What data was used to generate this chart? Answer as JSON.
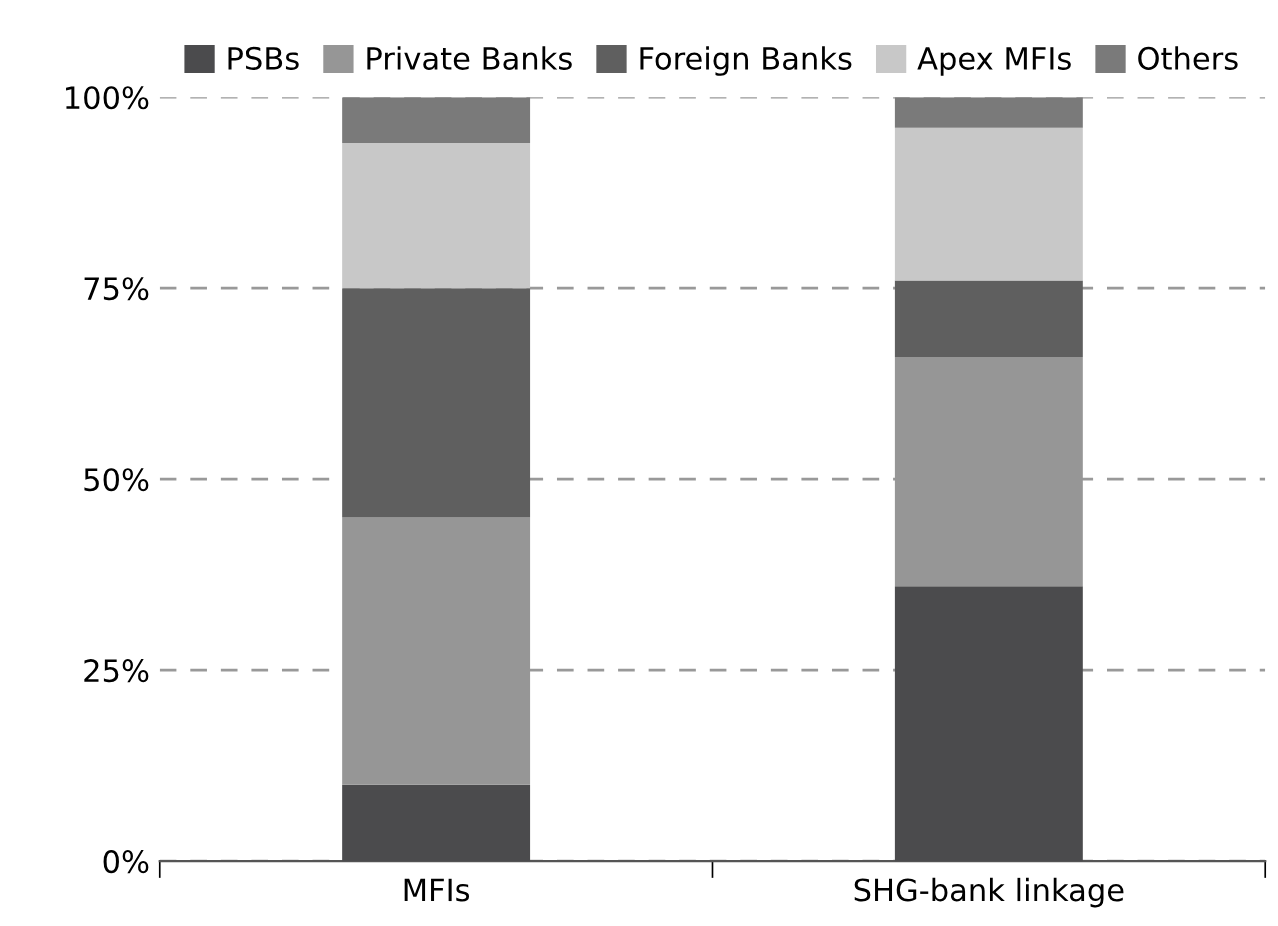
{
  "chart_data": {
    "type": "bar",
    "stacked": true,
    "categories": [
      "MFIs",
      "SHG-bank linkage"
    ],
    "series": [
      {
        "name": "PSBs",
        "color": "#4b4b4d",
        "values": [
          10,
          36
        ]
      },
      {
        "name": "Private Banks",
        "color": "#969696",
        "values": [
          35,
          30
        ]
      },
      {
        "name": "Foreign Banks",
        "color": "#5f5f5f",
        "values": [
          30,
          10
        ]
      },
      {
        "name": "Apex MFIs",
        "color": "#c8c8c8",
        "values": [
          19,
          20
        ]
      },
      {
        "name": "Others",
        "color": "#7a7a7a",
        "values": [
          6,
          4
        ]
      }
    ],
    "ylim": [
      0,
      100
    ],
    "yticks": [
      {
        "value": 0,
        "label": "0%"
      },
      {
        "value": 25,
        "label": "25%"
      },
      {
        "value": 50,
        "label": "50%"
      },
      {
        "value": 75,
        "label": "75%"
      },
      {
        "value": 100,
        "label": "100%"
      }
    ],
    "grid": "y",
    "line_style": "dashed",
    "legend": "top"
  }
}
